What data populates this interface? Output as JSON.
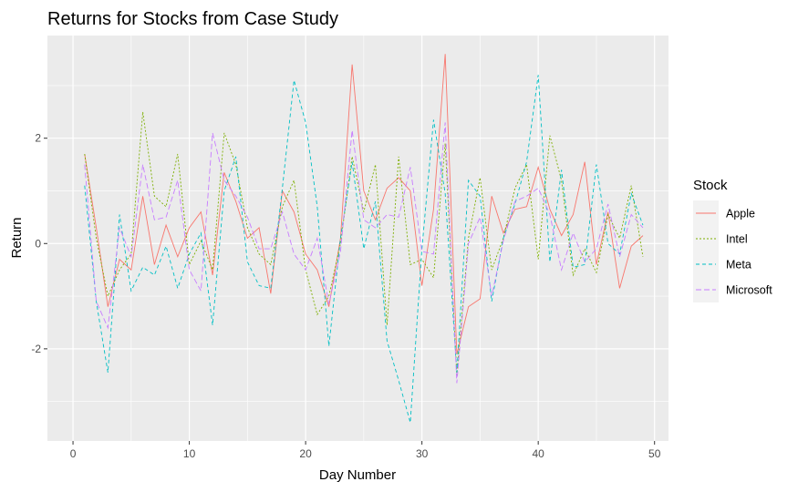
{
  "chart_data": {
    "type": "line",
    "title": "Returns for Stocks from Case Study",
    "xlabel": "Day Number",
    "ylabel": "Return",
    "xlim": [
      -2.2,
      51.2
    ],
    "ylim": [
      -3.75,
      3.95
    ],
    "x_ticks": [
      0,
      10,
      20,
      30,
      40,
      50
    ],
    "y_ticks": [
      -2,
      0,
      2
    ],
    "grid": true,
    "legend": {
      "title": "Stock",
      "placement": "right"
    },
    "x": [
      1,
      2,
      3,
      4,
      5,
      6,
      7,
      8,
      9,
      10,
      11,
      12,
      13,
      14,
      15,
      16,
      17,
      18,
      19,
      20,
      21,
      22,
      23,
      24,
      25,
      26,
      27,
      28,
      29,
      30,
      31,
      32,
      33,
      34,
      35,
      36,
      37,
      38,
      39,
      40,
      41,
      42,
      43,
      44,
      45,
      46,
      47,
      48,
      49
    ],
    "series": [
      {
        "name": "Apple",
        "color": "#F8766D",
        "dash": "none",
        "values": [
          1.7,
          0.3,
          -1.2,
          -0.3,
          -0.5,
          0.9,
          -0.4,
          0.35,
          -0.25,
          0.3,
          0.6,
          -0.6,
          1.35,
          0.8,
          0.1,
          0.3,
          -0.95,
          1.0,
          0.6,
          -0.2,
          -0.5,
          -1.2,
          0.1,
          3.4,
          1.0,
          0.45,
          1.05,
          1.25,
          1.0,
          -0.8,
          0.65,
          3.6,
          -2.1,
          -1.2,
          -1.05,
          0.9,
          0.2,
          0.65,
          0.7,
          1.45,
          0.65,
          0.15,
          0.55,
          1.55,
          -0.4,
          0.6,
          -0.85,
          -0.05,
          0.15
        ]
      },
      {
        "name": "Intel",
        "color": "#7CAE00",
        "dash": "2,2",
        "values": [
          1.7,
          0.1,
          -1.0,
          -0.5,
          -0.2,
          2.5,
          0.9,
          0.7,
          1.7,
          -0.4,
          0.05,
          -0.5,
          2.1,
          1.5,
          0.3,
          -0.2,
          -0.4,
          0.7,
          1.2,
          -0.5,
          -1.35,
          -1.0,
          0.0,
          1.65,
          0.6,
          1.5,
          -1.55,
          1.65,
          -0.4,
          -0.3,
          -0.65,
          1.9,
          -2.5,
          0.1,
          1.25,
          -0.5,
          0.1,
          1.05,
          1.5,
          -0.3,
          2.05,
          1.2,
          -0.6,
          -0.1,
          -0.55,
          0.55,
          0.1,
          1.1,
          -0.25
        ]
      },
      {
        "name": "Meta",
        "color": "#00BFC4",
        "dash": "4,3",
        "values": [
          1.1,
          -1.1,
          -2.45,
          0.55,
          -0.9,
          -0.45,
          -0.6,
          -0.05,
          -0.85,
          -0.2,
          0.2,
          -1.55,
          1.0,
          1.65,
          -0.35,
          -0.8,
          -0.85,
          1.05,
          3.1,
          2.3,
          0.7,
          -1.95,
          0.1,
          1.55,
          -0.1,
          0.8,
          -1.85,
          -2.6,
          -3.4,
          -0.1,
          2.35,
          0.95,
          -2.45,
          1.2,
          0.9,
          -1.1,
          0.1,
          0.75,
          1.55,
          3.2,
          -0.35,
          1.4,
          -0.45,
          -0.4,
          1.5,
          0.0,
          -0.2,
          0.95,
          0.35
        ]
      },
      {
        "name": "Microsoft",
        "color": "#C77CFF",
        "dash": "6,3",
        "values": [
          1.5,
          -1.1,
          -1.6,
          0.3,
          -0.25,
          1.5,
          0.45,
          0.5,
          1.2,
          -0.5,
          -0.9,
          2.1,
          1.2,
          0.9,
          0.5,
          -0.1,
          -0.1,
          0.6,
          -0.2,
          -0.5,
          0.1,
          -1.15,
          -0.15,
          2.15,
          0.45,
          0.3,
          0.55,
          0.5,
          1.45,
          -0.15,
          -0.2,
          2.3,
          -2.65,
          0.0,
          0.5,
          -1.0,
          0.05,
          0.8,
          0.9,
          1.05,
          0.55,
          -0.5,
          0.2,
          -0.35,
          -0.1,
          0.75,
          -0.25,
          0.55,
          0.3
        ]
      }
    ]
  }
}
